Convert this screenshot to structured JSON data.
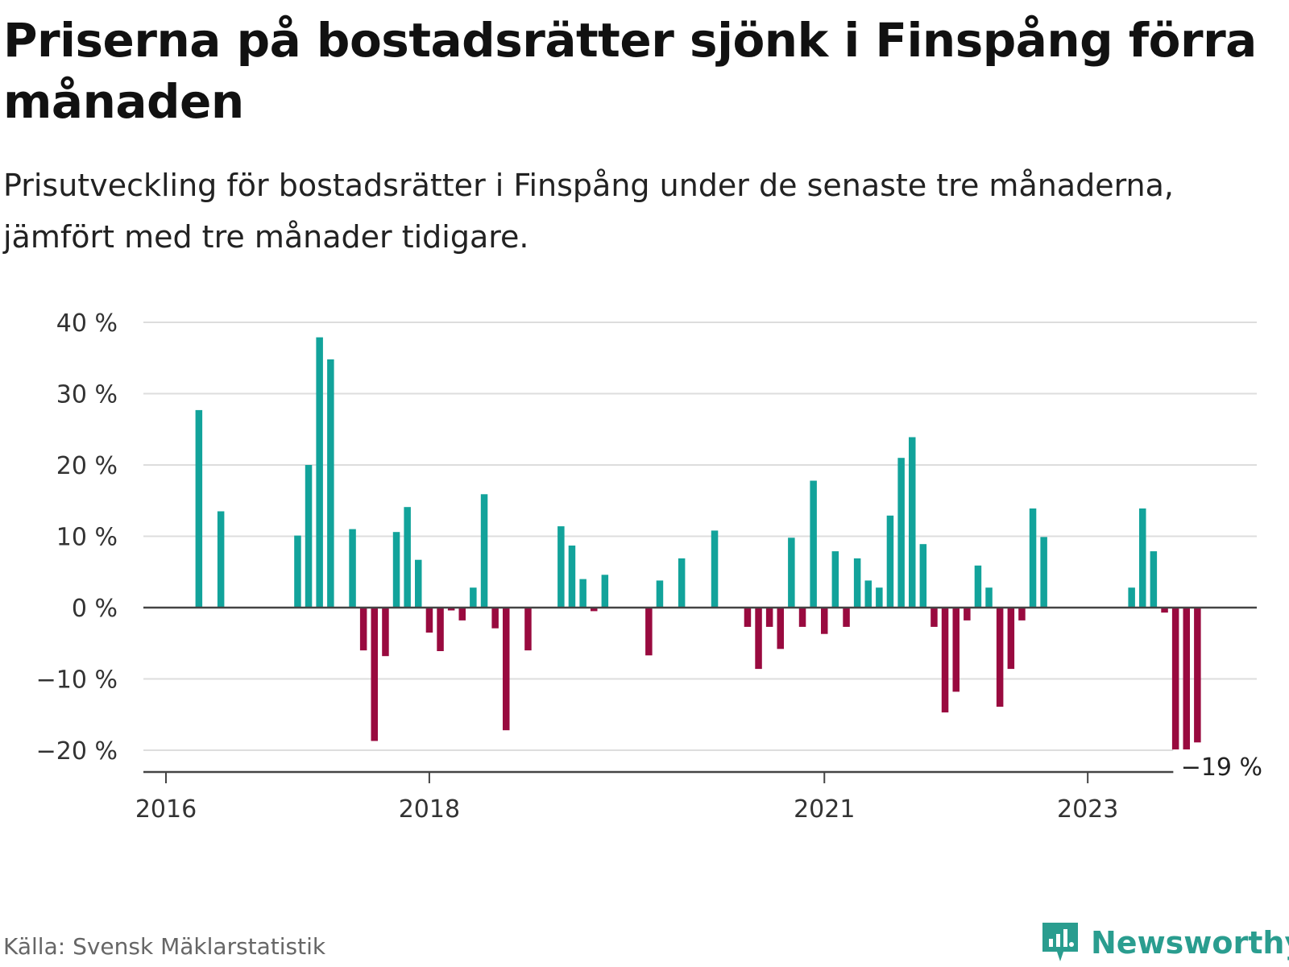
{
  "title": "Priserna på bostadsrätter sjönk i Finspång förra månaden",
  "subtitle": "Prisutveckling för bostadsrätter i Finspång under de senaste tre månaderna, jämfört med tre månader tidigare.",
  "source": "Källa: Svensk Mäklarstatistik",
  "brand": {
    "name": "Newsworthy",
    "icon": "newsworthy-logo-icon"
  },
  "colors": {
    "positive": "#12a39b",
    "negative": "#990a3f",
    "grid": "#dddddd",
    "axis": "#444444"
  },
  "chart_data": {
    "type": "bar",
    "x_start": "2016-01",
    "x_end": "2023-12",
    "x_ticks": [
      "2016",
      "2018",
      "2021",
      "2023"
    ],
    "y_ticks": [
      40,
      30,
      20,
      10,
      0,
      -10,
      -20
    ],
    "y_tick_labels": [
      "40 %",
      "30 %",
      "20 %",
      "10 %",
      "0 %",
      "−10 %",
      "−20 %"
    ],
    "ylim": [
      -22,
      40
    ],
    "grid": true,
    "last_label": "−19 %",
    "x": [
      "2016-04",
      "2016-06",
      "2017-01",
      "2017-02",
      "2017-03",
      "2017-04",
      "2017-06",
      "2017-07",
      "2017-08",
      "2017-09",
      "2017-10",
      "2017-11",
      "2017-12",
      "2018-01",
      "2018-02",
      "2018-03",
      "2018-04",
      "2018-05",
      "2018-06",
      "2018-07",
      "2018-08",
      "2018-10",
      "2019-01",
      "2019-02",
      "2019-03",
      "2019-04",
      "2019-05",
      "2019-09",
      "2019-10",
      "2019-12",
      "2020-03",
      "2020-06",
      "2020-07",
      "2020-08",
      "2020-09",
      "2020-10",
      "2020-11",
      "2020-12",
      "2021-01",
      "2021-02",
      "2021-03",
      "2021-04",
      "2021-05",
      "2021-06",
      "2021-07",
      "2021-08",
      "2021-09",
      "2021-10",
      "2021-11",
      "2021-12",
      "2022-01",
      "2022-02",
      "2022-03",
      "2022-04",
      "2022-05",
      "2022-06",
      "2022-07",
      "2022-08",
      "2022-09",
      "2023-05",
      "2023-06",
      "2023-07",
      "2023-08",
      "2023-09",
      "2023-10",
      "2023-11"
    ],
    "values": [
      27.7,
      13.5,
      10.1,
      20.0,
      37.9,
      34.8,
      11.0,
      -6.0,
      -18.7,
      -6.8,
      10.6,
      14.1,
      6.7,
      -3.5,
      -6.1,
      -0.4,
      -1.8,
      2.8,
      15.9,
      -2.9,
      -17.2,
      -6.0,
      11.4,
      8.7,
      4.0,
      -0.5,
      4.6,
      -6.7,
      3.8,
      6.9,
      10.8,
      -2.7,
      -8.6,
      -2.7,
      -5.8,
      9.8,
      -2.7,
      17.8,
      -3.7,
      7.9,
      -2.7,
      6.9,
      3.8,
      2.8,
      12.9,
      21.0,
      23.9,
      8.9,
      -2.7,
      -14.7,
      -11.8,
      -1.8,
      5.9,
      2.8,
      -13.9,
      -8.6,
      -1.8,
      13.9,
      9.9,
      2.8,
      13.9,
      7.9,
      -0.7,
      -19.9,
      -19.9,
      -18.9
    ]
  }
}
